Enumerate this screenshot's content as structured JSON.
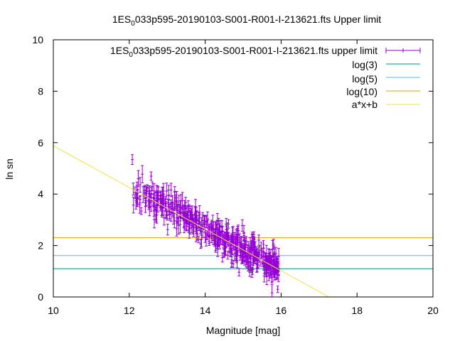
{
  "chart_data": {
    "type": "scatter",
    "title_main": "1ES",
    "title_sub": "0",
    "title_rest": "033p595-20190103-S001-R001-I-213621.fts Upper limit",
    "xlabel": "Magnitude [mag]",
    "ylabel": "ln sn",
    "xlim": [
      10,
      20
    ],
    "ylim": [
      0,
      10
    ],
    "xticks": [
      10,
      12,
      14,
      16,
      18,
      20
    ],
    "yticks": [
      0,
      2,
      4,
      6,
      8,
      10
    ],
    "grid": false,
    "legend_position": "top-right",
    "series": [
      {
        "name_main": "1ES",
        "name_sub": "0",
        "name_rest": "033p595-20190103-S001-R001-I-213621.fts upper limit",
        "kind": "points-errorbars",
        "color": "#9400d3",
        "x_range": [
          12.05,
          15.95
        ],
        "trend": {
          "slope": -0.81,
          "intercept": 14.0
        },
        "scatter_sigma": 0.32,
        "errbar_range": [
          0.12,
          0.35
        ],
        "count": 480
      },
      {
        "name": "log(3)",
        "kind": "hline",
        "y": 1.0986,
        "color": "#009e73"
      },
      {
        "name": "log(5)",
        "kind": "hline",
        "y": 1.6094,
        "color": "#56b4e9"
      },
      {
        "name": "log(10)",
        "kind": "hline",
        "y": 2.3026,
        "color": "#e69f00"
      },
      {
        "name": "a*x+b",
        "kind": "line",
        "slope": -0.81,
        "intercept": 13.98,
        "color": "#f0e442"
      }
    ]
  }
}
